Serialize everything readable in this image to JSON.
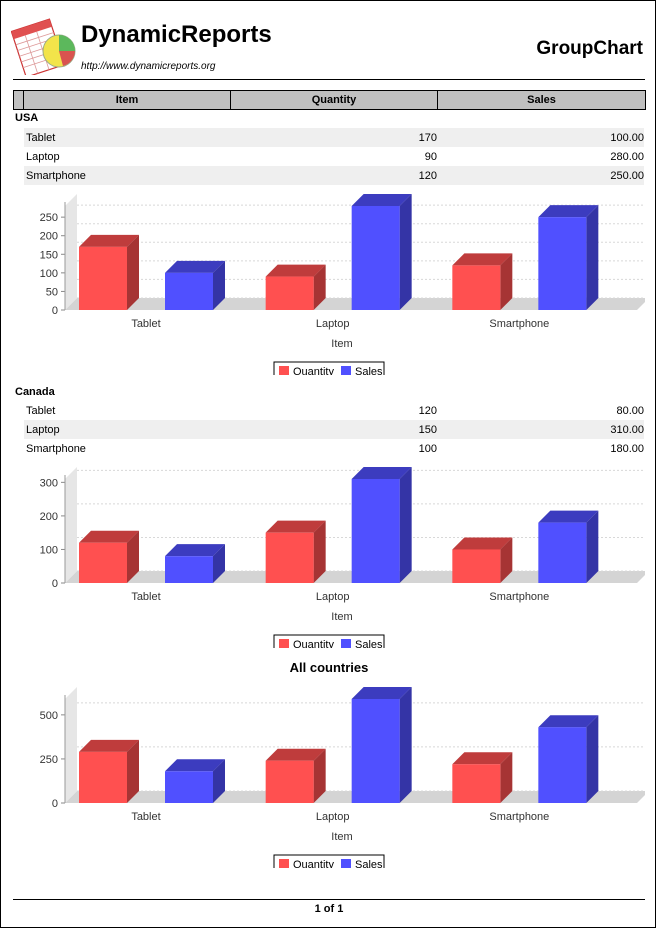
{
  "header": {
    "brand": "DynamicReports",
    "url": "http://www.dynamicreports.org",
    "report_title": "GroupChart"
  },
  "columns": [
    "Item",
    "Quantity",
    "Sales"
  ],
  "groups": [
    {
      "name": "USA",
      "rows": [
        {
          "item": "Tablet",
          "quantity": "170",
          "sales": "100.00"
        },
        {
          "item": "Laptop",
          "quantity": "90",
          "sales": "280.00"
        },
        {
          "item": "Smartphone",
          "quantity": "120",
          "sales": "250.00"
        }
      ]
    },
    {
      "name": "Canada",
      "rows": [
        {
          "item": "Tablet",
          "quantity": "120",
          "sales": "80.00"
        },
        {
          "item": "Laptop",
          "quantity": "150",
          "sales": "310.00"
        },
        {
          "item": "Smartphone",
          "quantity": "100",
          "sales": "180.00"
        }
      ]
    }
  ],
  "summary_title": "All countries",
  "footer": {
    "page": "1 of 1"
  },
  "colors": {
    "quantity": "#ff5050",
    "sales": "#5050ff",
    "header_bg": "#c0c0c0"
  },
  "chart_data": [
    {
      "type": "bar",
      "title": "",
      "categories": [
        "Tablet",
        "Laptop",
        "Smartphone"
      ],
      "series": [
        {
          "name": "Quantity",
          "values": [
            170,
            90,
            120
          ]
        },
        {
          "name": "Sales",
          "values": [
            100,
            280,
            250
          ]
        }
      ],
      "xlabel": "Item",
      "ylabel": "",
      "ylim": [
        0,
        280
      ],
      "yticks": [
        0,
        50,
        100,
        150,
        200,
        250
      ],
      "legend": "bottom"
    },
    {
      "type": "bar",
      "title": "",
      "categories": [
        "Tablet",
        "Laptop",
        "Smartphone"
      ],
      "series": [
        {
          "name": "Quantity",
          "values": [
            120,
            150,
            100
          ]
        },
        {
          "name": "Sales",
          "values": [
            80,
            310,
            180
          ]
        }
      ],
      "xlabel": "Item",
      "ylabel": "",
      "ylim": [
        0,
        310
      ],
      "yticks": [
        0,
        100,
        200,
        300
      ],
      "legend": "bottom"
    },
    {
      "type": "bar",
      "title": "All countries",
      "categories": [
        "Tablet",
        "Laptop",
        "Smartphone"
      ],
      "series": [
        {
          "name": "Quantity",
          "values": [
            290,
            240,
            220
          ]
        },
        {
          "name": "Sales",
          "values": [
            180,
            590,
            430
          ]
        }
      ],
      "xlabel": "Item",
      "ylabel": "",
      "ylim": [
        0,
        590
      ],
      "yticks": [
        0,
        250,
        500
      ],
      "legend": "bottom"
    }
  ]
}
